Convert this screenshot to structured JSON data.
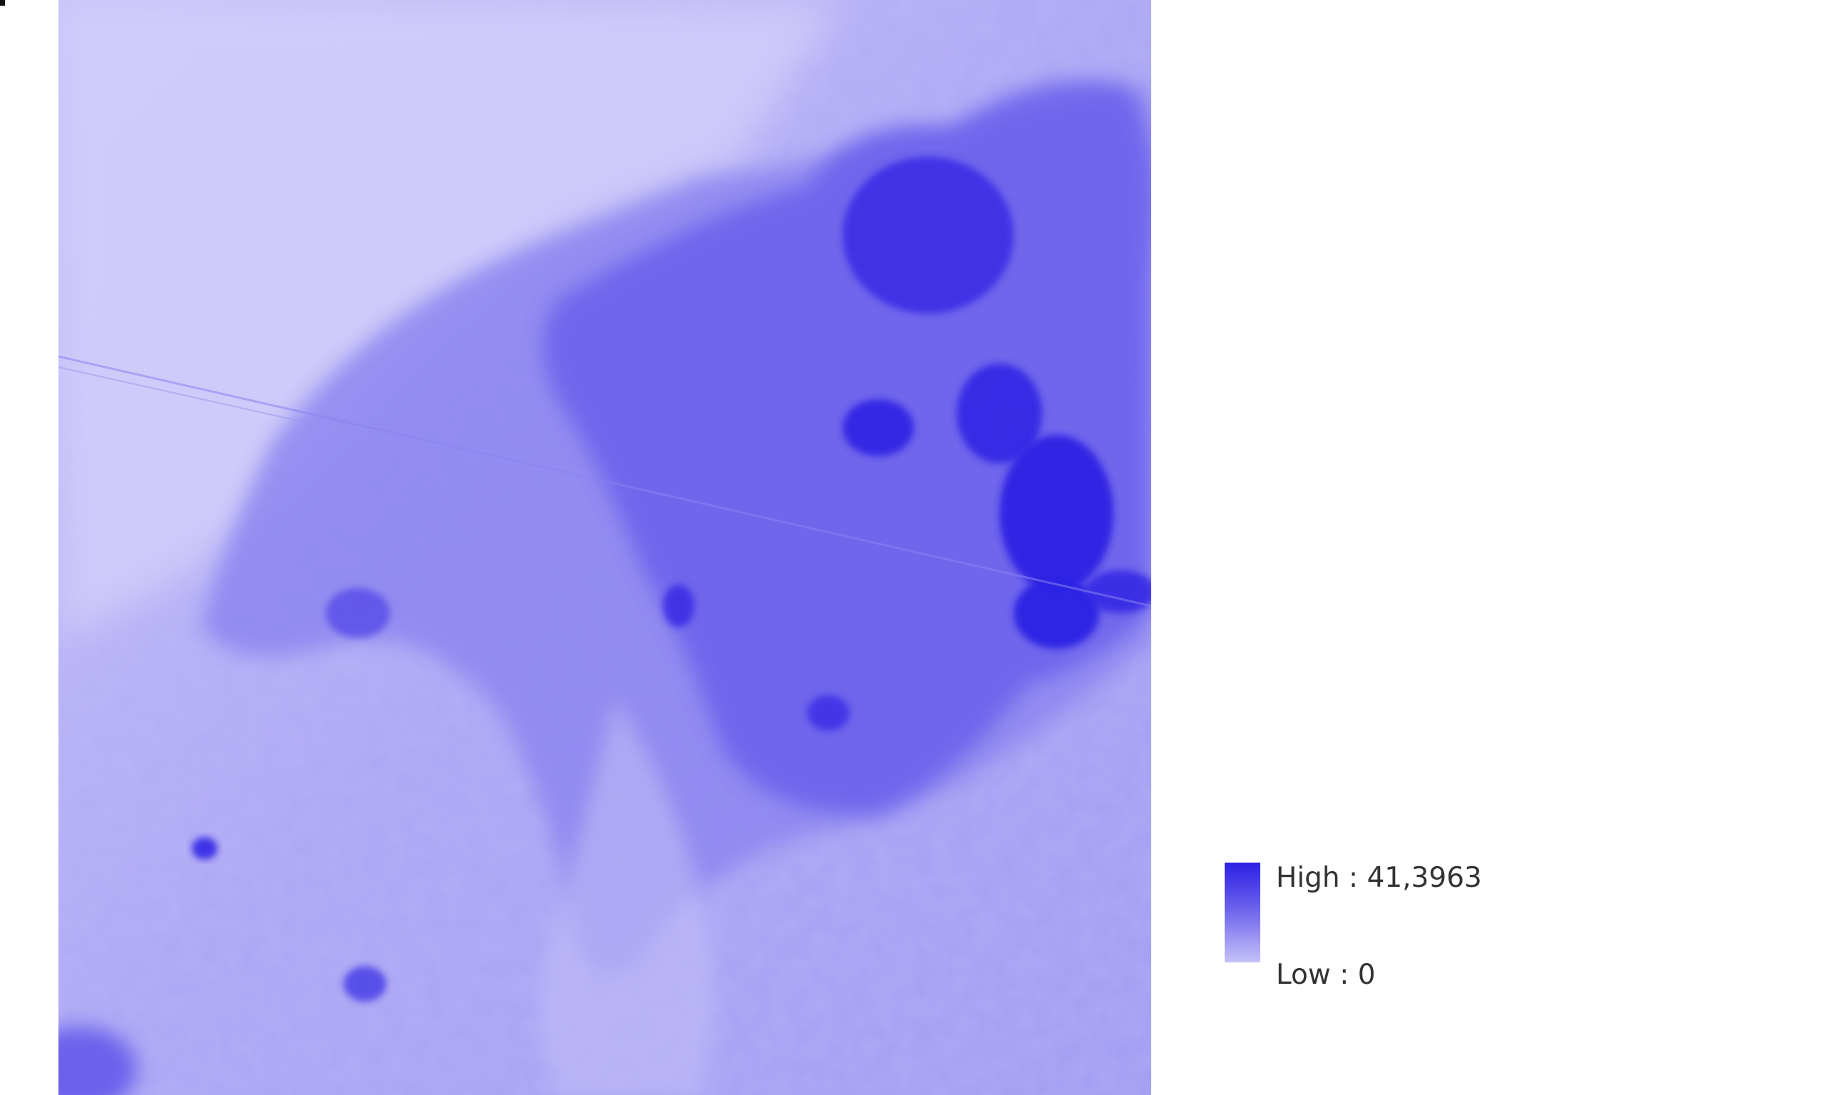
{
  "map": {
    "colors": {
      "low": "#c6c1f8",
      "mid": "#8a82f0",
      "high": "#2b20e4"
    }
  },
  "legend": {
    "high_label": "High : 41,3963",
    "low_label": "Low : 0",
    "ramp_colors": [
      "#2b20e4",
      "#c5c1f8"
    ]
  }
}
